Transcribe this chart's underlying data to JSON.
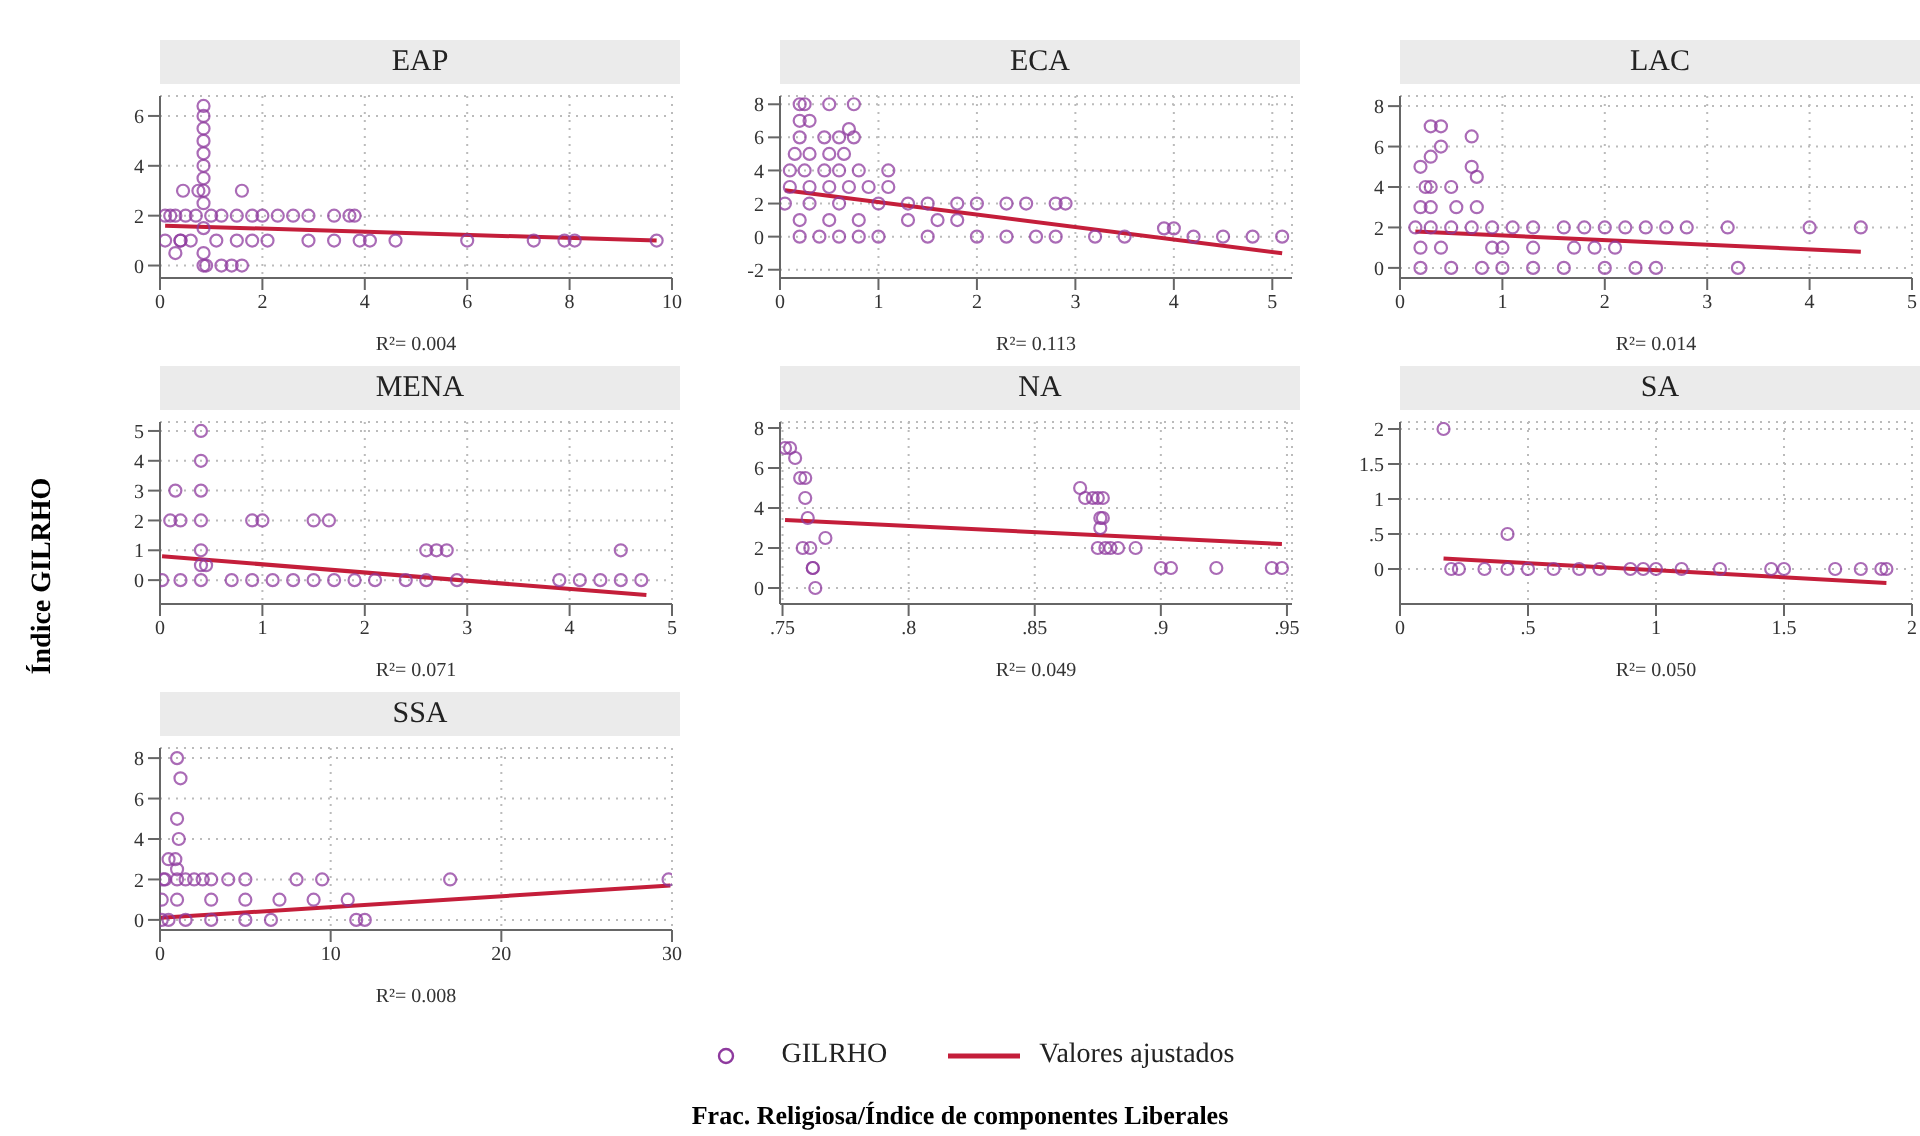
{
  "chart_data": [
    {
      "type": "scatter",
      "title": "EAP",
      "xlabel": "R²= 0.004",
      "xlim": [
        0,
        10
      ],
      "xticks": [
        0,
        2,
        4,
        6,
        8,
        10
      ],
      "ylim": [
        -0.5,
        6.8
      ],
      "yticks": [
        0,
        2,
        4,
        6
      ],
      "grid": true,
      "series": [
        {
          "marker": "circle",
          "color": "#8e3a9e",
          "x": [
            0.1,
            0.2,
            0.3,
            0.5,
            0.7,
            1.0,
            1.2,
            1.5,
            1.8,
            2.0,
            2.3,
            2.6,
            2.9,
            3.4,
            3.7,
            3.8,
            0.1,
            0.3,
            0.4,
            0.6,
            1.1,
            1.5,
            1.8,
            2.1,
            2.9,
            3.4,
            3.9,
            4.1,
            4.6,
            6.0,
            7.3,
            7.9,
            8.1,
            9.7,
            0.85,
            0.9,
            1.2,
            1.4,
            1.6,
            0.85,
            0.85,
            0.85,
            0.85,
            0.85,
            0.85,
            0.85,
            0.85,
            0.85,
            0.85,
            0.85,
            0.4,
            0.75,
            1.6,
            0.45
          ],
          "values": [
            2,
            2,
            2,
            2,
            2,
            2,
            2,
            2,
            2,
            2,
            2,
            2,
            2,
            2,
            2,
            2,
            1,
            0.5,
            1,
            1,
            1,
            1,
            1,
            1,
            1,
            1,
            1,
            1,
            1,
            1,
            1,
            1,
            1,
            1,
            0,
            0,
            0,
            0,
            0,
            0.5,
            1.5,
            2.5,
            3,
            3.5,
            4,
            4.5,
            5,
            5.5,
            6,
            6.4,
            1,
            3,
            3,
            3
          ]
        },
        {
          "type": "line",
          "color": "#c41e3a",
          "x": [
            0.1,
            9.7
          ],
          "values": [
            1.6,
            1.0
          ],
          "line_style": "solid"
        }
      ]
    },
    {
      "type": "scatter",
      "title": "ECA",
      "xlabel": "R²= 0.113",
      "xlim": [
        0,
        5.2
      ],
      "xticks": [
        0,
        1,
        2,
        3,
        4,
        5
      ],
      "ylim": [
        -2.5,
        8.5
      ],
      "yticks": [
        -2,
        0,
        2,
        4,
        6,
        8
      ],
      "grid": true,
      "series": [
        {
          "marker": "circle",
          "color": "#8e3a9e",
          "x": [
            0.2,
            0.25,
            0.5,
            0.75,
            0.2,
            0.3,
            0.7,
            0.2,
            0.45,
            0.6,
            0.75,
            0.15,
            0.3,
            0.5,
            0.65,
            0.1,
            0.25,
            0.45,
            0.6,
            0.8,
            1.1,
            0.1,
            0.3,
            0.5,
            0.7,
            0.9,
            1.1,
            0.05,
            0.3,
            0.6,
            1.0,
            1.3,
            1.5,
            1.8,
            2.0,
            2.3,
            2.5,
            2.8,
            2.9,
            0.2,
            0.5,
            0.8,
            1.3,
            1.6,
            1.8,
            0.2,
            0.4,
            0.6,
            0.8,
            1.0,
            1.5,
            2.0,
            2.3,
            2.6,
            2.8,
            3.2,
            3.5,
            4.2,
            4.5,
            4.8,
            5.1,
            3.9,
            4.0
          ],
          "values": [
            8,
            8,
            8,
            8,
            7,
            7,
            6.5,
            6,
            6,
            6,
            6,
            5,
            5,
            5,
            5,
            4,
            4,
            4,
            4,
            4,
            4,
            3,
            3,
            3,
            3,
            3,
            3,
            2,
            2,
            2,
            2,
            2,
            2,
            2,
            2,
            2,
            2,
            2,
            2,
            1,
            1,
            1,
            1,
            1,
            1,
            0,
            0,
            0,
            0,
            0,
            0,
            0,
            0,
            0,
            0,
            0,
            0,
            0,
            0,
            0,
            0,
            0.5,
            0.5
          ]
        },
        {
          "type": "line",
          "color": "#c41e3a",
          "x": [
            0.05,
            5.1
          ],
          "values": [
            2.8,
            -1
          ],
          "line_style": "solid"
        }
      ]
    },
    {
      "type": "scatter",
      "title": "LAC",
      "xlabel": "R²= 0.014",
      "xlim": [
        0,
        5
      ],
      "xticks": [
        0,
        1,
        2,
        3,
        4,
        5
      ],
      "ylim": [
        -0.5,
        8.5
      ],
      "yticks": [
        0,
        2,
        4,
        6,
        8
      ],
      "grid": true,
      "series": [
        {
          "marker": "circle",
          "color": "#8e3a9e",
          "x": [
            0.3,
            0.4,
            0.4,
            0.7,
            0.2,
            0.3,
            0.7,
            0.25,
            0.3,
            0.5,
            0.75,
            0.2,
            0.3,
            0.55,
            0.75,
            0.15,
            0.3,
            0.5,
            0.7,
            0.9,
            1.1,
            1.3,
            1.6,
            1.8,
            2.0,
            2.2,
            2.4,
            2.6,
            2.8,
            3.2,
            4.0,
            4.5,
            0.2,
            0.4,
            0.9,
            1.0,
            1.3,
            1.7,
            1.9,
            2.1,
            0.2,
            0.5,
            0.8,
            1.0,
            1.3,
            1.6,
            2.0,
            2.3,
            2.5,
            3.3
          ],
          "values": [
            7,
            7,
            6,
            6.5,
            5,
            5.5,
            5,
            4,
            4,
            4,
            4.5,
            3,
            3,
            3,
            3,
            2,
            2,
            2,
            2,
            2,
            2,
            2,
            2,
            2,
            2,
            2,
            2,
            2,
            2,
            2,
            2,
            2,
            1,
            1,
            1,
            1,
            1,
            1,
            1,
            1,
            0,
            0,
            0,
            0,
            0,
            0,
            0,
            0,
            0,
            0
          ]
        },
        {
          "type": "line",
          "color": "#c41e3a",
          "x": [
            0.15,
            4.5
          ],
          "values": [
            1.8,
            0.8
          ],
          "line_style": "solid"
        }
      ]
    },
    {
      "type": "scatter",
      "title": "MENA",
      "xlabel": "R²= 0.071",
      "ylabel": "Índice GILRHO",
      "xlim": [
        0,
        5
      ],
      "xticks": [
        0,
        1,
        2,
        3,
        4,
        5
      ],
      "ylim": [
        -0.8,
        5.3
      ],
      "yticks": [
        0,
        1,
        2,
        3,
        4,
        5
      ],
      "grid": true,
      "series": [
        {
          "marker": "circle",
          "color": "#8e3a9e",
          "x": [
            0.4,
            0.4,
            0.15,
            0.4,
            0.1,
            0.2,
            0.4,
            0.9,
            1.0,
            1.5,
            1.65,
            0.4,
            2.6,
            2.7,
            2.8,
            4.5,
            0.4,
            0.45,
            0.02,
            0.2,
            0.4,
            0.7,
            0.9,
            1.1,
            1.3,
            1.5,
            1.7,
            1.9,
            2.1,
            2.4,
            2.6,
            2.9,
            3.9,
            4.1,
            4.3,
            4.5,
            4.7
          ],
          "values": [
            5,
            4,
            3,
            3,
            2,
            2,
            2,
            2,
            2,
            2,
            2,
            1,
            1,
            1,
            1,
            1,
            0.5,
            0.5,
            0,
            0,
            0,
            0,
            0,
            0,
            0,
            0,
            0,
            0,
            0,
            0,
            0,
            0,
            0,
            0,
            0,
            0,
            0
          ]
        },
        {
          "type": "line",
          "color": "#c41e3a",
          "x": [
            0.02,
            4.75
          ],
          "values": [
            0.8,
            -0.5
          ],
          "line_style": "solid"
        }
      ]
    },
    {
      "type": "scatter",
      "title": "NA",
      "xlabel": "R²= 0.049",
      "xlim": [
        0.749,
        0.952
      ],
      "xticks": [
        {
          "value": 0.75,
          "label": ".75"
        },
        {
          "value": 0.8,
          "label": ".8"
        },
        {
          "value": 0.85,
          "label": ".85"
        },
        {
          "value": 0.9,
          "label": ".9"
        },
        {
          "value": 0.95,
          "label": ".95"
        }
      ],
      "ylim": [
        -0.8,
        8.3
      ],
      "yticks": [
        0,
        2,
        4,
        6,
        8
      ],
      "grid": true,
      "series": [
        {
          "marker": "circle",
          "color": "#8e3a9e",
          "x": [
            0.751,
            0.753,
            0.755,
            0.757,
            0.759,
            0.759,
            0.76,
            0.758,
            0.761,
            0.762,
            0.763,
            0.762,
            0.767,
            0.868,
            0.87,
            0.873,
            0.875,
            0.876,
            0.877,
            0.875,
            0.878,
            0.876,
            0.877,
            0.88,
            0.883,
            0.89,
            0.9,
            0.904,
            0.922,
            0.944,
            0.948
          ],
          "values": [
            7,
            7,
            6.5,
            5.5,
            5.5,
            4.5,
            3.5,
            2,
            2,
            1,
            0,
            1,
            2.5,
            5,
            4.5,
            4.5,
            4.5,
            3.5,
            3.5,
            2,
            2,
            3,
            4.5,
            2,
            2,
            2,
            1,
            1,
            1,
            1,
            1
          ]
        },
        {
          "type": "line",
          "color": "#c41e3a",
          "x": [
            0.751,
            0.948
          ],
          "values": [
            3.4,
            2.2
          ],
          "line_style": "solid"
        }
      ]
    },
    {
      "type": "scatter",
      "title": "SA",
      "xlabel": "R²= 0.050",
      "xlim": [
        0,
        2
      ],
      "xticks": [
        0,
        {
          "value": 0.5,
          "label": ".5"
        },
        1,
        {
          "value": 1.5,
          "label": "1.5"
        },
        2
      ],
      "ylim": [
        -0.5,
        2.1
      ],
      "yticks": [
        0,
        {
          "value": 0.5,
          "label": ".5"
        },
        1,
        {
          "value": 1.5,
          "label": "1.5"
        },
        2
      ],
      "grid": true,
      "series": [
        {
          "marker": "circle",
          "color": "#8e3a9e",
          "x": [
            0.17,
            0.42,
            0.2,
            0.23,
            0.33,
            0.42,
            0.5,
            0.6,
            0.7,
            0.78,
            0.9,
            0.95,
            1.0,
            1.1,
            1.25,
            1.45,
            1.5,
            1.7,
            1.8,
            1.88,
            1.9
          ],
          "values": [
            2,
            0.5,
            0,
            0,
            0,
            0,
            0,
            0,
            0,
            0,
            0,
            0,
            0,
            0,
            0,
            0,
            0,
            0,
            0,
            0,
            0
          ]
        },
        {
          "type": "line",
          "color": "#c41e3a",
          "x": [
            0.17,
            1.9
          ],
          "values": [
            0.15,
            -0.2
          ],
          "line_style": "solid"
        }
      ]
    },
    {
      "type": "scatter",
      "title": "SSA",
      "xlabel": "R²= 0.008",
      "annotations": [
        "Frac. Religiosa/Índice de componentes Liberales"
      ],
      "legend": "bottom",
      "xlim": [
        0,
        30
      ],
      "xticks": [
        0,
        10,
        20,
        30
      ],
      "ylim": [
        -0.5,
        8.5
      ],
      "yticks": [
        0,
        2,
        4,
        6,
        8
      ],
      "grid": true,
      "series": [
        {
          "name": "GILRHO",
          "marker": "circle",
          "color": "#8e3a9e",
          "x": [
            1.0,
            1.2,
            1.0,
            1.1,
            0.9,
            0.5,
            1.0,
            0.3,
            1.5,
            2.5,
            0.2,
            1.0,
            2.0,
            3.0,
            4.0,
            5.0,
            8.0,
            9.5,
            17.0,
            29.8,
            0.1,
            1.0,
            3.0,
            5.0,
            7.0,
            9.0,
            11.0,
            0.1,
            0.5,
            1.5,
            3.0,
            5.0,
            6.5,
            11.5,
            12.0
          ],
          "values": [
            8,
            7,
            5,
            4,
            3,
            3,
            2.5,
            2,
            2,
            2,
            2,
            2,
            2,
            2,
            2,
            2,
            2,
            2,
            2,
            2,
            1,
            1,
            1,
            1,
            1,
            1,
            1,
            0,
            0,
            0,
            0,
            0,
            0,
            0,
            0
          ]
        },
        {
          "name": "Valores ajustados",
          "type": "line",
          "color": "#c41e3a",
          "x": [
            0.05,
            29.9
          ],
          "values": [
            0.1,
            1.7
          ],
          "line_style": "solid"
        }
      ]
    }
  ]
}
